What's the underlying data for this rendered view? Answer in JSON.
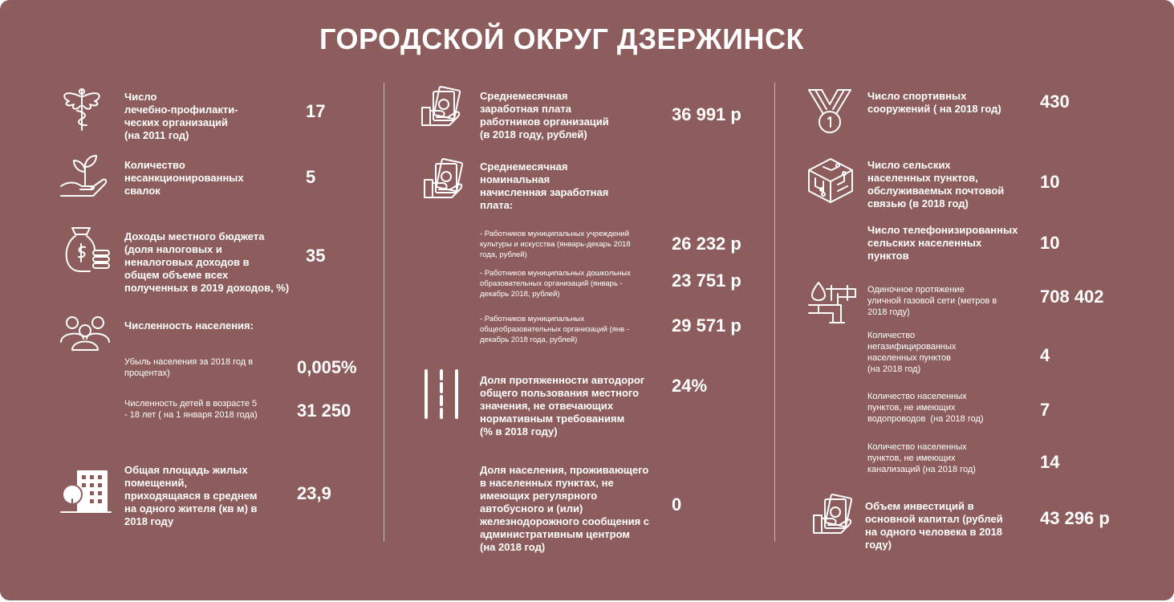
{
  "title": "ГОРОДСКОЙ ОКРУГ ДЗЕРЖИНСК",
  "left": {
    "medical": {
      "label": "Число\nлечебно-профилакти-\nческих организаций\n(на 2011 год)",
      "value": "17",
      "icon": "caduceus-icon"
    },
    "dumps": {
      "label": "Количество\nнесанкционированных\nсвалок",
      "value": "5",
      "icon": "plant-hand-icon"
    },
    "budget": {
      "label": "Доходы местного бюджета\n(доля налоговых и\nненалоговых доходов в\nобщем объеме всех\nполученных в 2019 доходов, %)",
      "value": "35",
      "icon": "money-bag-icon"
    },
    "population": {
      "label": "Численность населения:",
      "icon": "people-icon"
    },
    "decline": {
      "label": "Убыль населения за 2018 год в\nпроцентах)",
      "value": "0,005%"
    },
    "children": {
      "label": "Численность детей в возрасте 5\n- 18 лет ( на 1 января 2018 года)",
      "value": "31 250"
    },
    "housing": {
      "label": "Общая площадь жилых\nпомещений,\nприходящаяся в среднем\nна одного жителя (кв м) в\n2018 году",
      "value": "23,9",
      "icon": "building-icon"
    }
  },
  "middle": {
    "avg_salary": {
      "label": "Среднемесячная\nзаработная плата\nработников организаций\n(в 2018 году, рублей)",
      "value": "36 991 р",
      "icon": "money-hand-icon"
    },
    "nominal_salary": {
      "label": "Среднемесячная\nноминальная\nначисленная заработная\nплата:",
      "icon": "money-hand-icon"
    },
    "culture": {
      "label": "- Работников муниципальных учреждений\nкультуры и искусства (январь-декарь 2018\nгода, рублей)",
      "value": "26 232 р"
    },
    "preschool": {
      "label": "- Работников муниципальных дошкольных\nобразовательных организаций (январь -\nдекабрь 2018, рублей)",
      "value": "23 751 р"
    },
    "school": {
      "label": "- Работников муниципальных\nобщеобразовательных организаций (янв -\nдекабрь 2018 года, рублей)",
      "value": "29 571 р"
    },
    "roads": {
      "label": "Доля протяженности автодорог\nобщего пользования местного\nзначения, не отвечающих\nнормативным требованиям\n(% в 2018 году)",
      "value": "24%",
      "icon": "road-icon"
    },
    "transport": {
      "label": "Доля населения, проживающего\nв населенных пунктах, не\nимеющих регулярного\nавтобусного и (или)\nжелезнодорожного сообщения с\nадминистративным центром\n(на 2018 год)",
      "value": "0"
    }
  },
  "right": {
    "sports": {
      "label": "Число спортивных\nсооружений ( на 2018 год)",
      "value": "430",
      "icon": "medal-icon"
    },
    "rural_post": {
      "label": "Число сельских\nнаселенных пунктов,\nобслуживаемых почтовой\nсвязью (в 2018 год)",
      "value": "10",
      "icon": "circuit-cube-icon"
    },
    "telephone": {
      "label": "Число телефонизированных\nсельских населенных\nпунктов",
      "value": "10"
    },
    "gas": {
      "label": "Одиночное протяжение\nуличной газовой сети (метров в\n2018 году)",
      "value": "708 402",
      "icon": "pipes-icon"
    },
    "no_gas": {
      "label": "Количество\nнегазифицированных\nнаселенных пунктов\n(на 2018 год)",
      "value": "4"
    },
    "no_water": {
      "label": "Количество населенных\nпунктов, не имеющих\nводопроводов  (на 2018 год)",
      "value": "7"
    },
    "no_sewer": {
      "label": "Количество населенных\nпунктов, не имеющих\nканализаций (на 2018 год)",
      "value": "14"
    },
    "investment": {
      "label": "Объем инвестиций в\nосновной капитал (рублей\nна одного человека в 2018\nгоду)",
      "value": "43 296 р",
      "icon": "money-hand-icon"
    }
  }
}
